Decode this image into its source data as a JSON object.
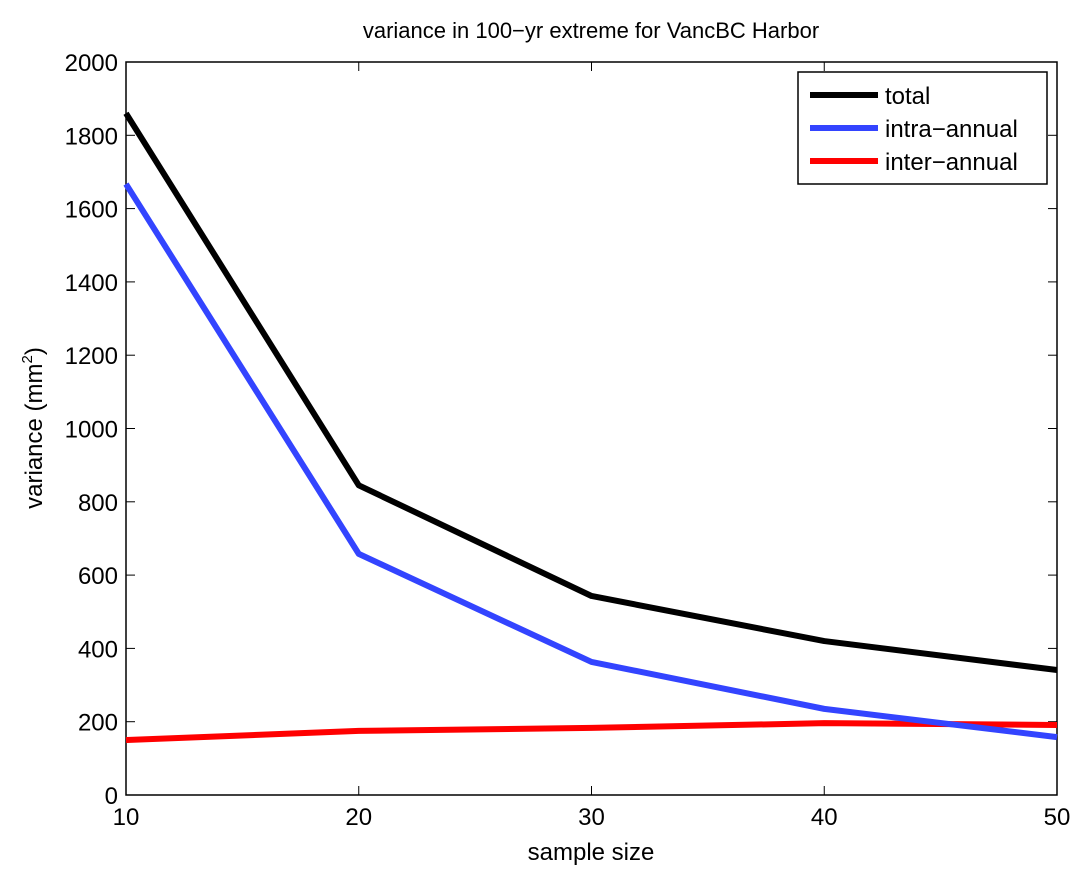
{
  "chart_data": {
    "type": "line",
    "title": "variance in 100−yr extreme for VancBC Harbor",
    "xlabel": "sample size",
    "ylabel": "variance (mm",
    "ylabel_sup": "2",
    "ylabel_close": ")",
    "xlim": [
      10,
      50
    ],
    "ylim": [
      0,
      2000
    ],
    "xticks": [
      "10",
      "20",
      "30",
      "40",
      "50"
    ],
    "yticks": [
      "0",
      "200",
      "400",
      "600",
      "800",
      "1000",
      "1200",
      "1400",
      "1600",
      "1800",
      "2000"
    ],
    "x": [
      10,
      20,
      30,
      40,
      50
    ],
    "grid": false,
    "legend_position": "top-right",
    "series": [
      {
        "name": "total",
        "color": "#000000",
        "values": [
          1860,
          845,
          543,
          420,
          341
        ]
      },
      {
        "name": "intra−annual",
        "color": "#3344ff",
        "values": [
          1667,
          658,
          363,
          235,
          158
        ]
      },
      {
        "name": "inter−annual",
        "color": "#ff0000",
        "values": [
          150,
          175,
          183,
          196,
          191
        ]
      }
    ]
  }
}
